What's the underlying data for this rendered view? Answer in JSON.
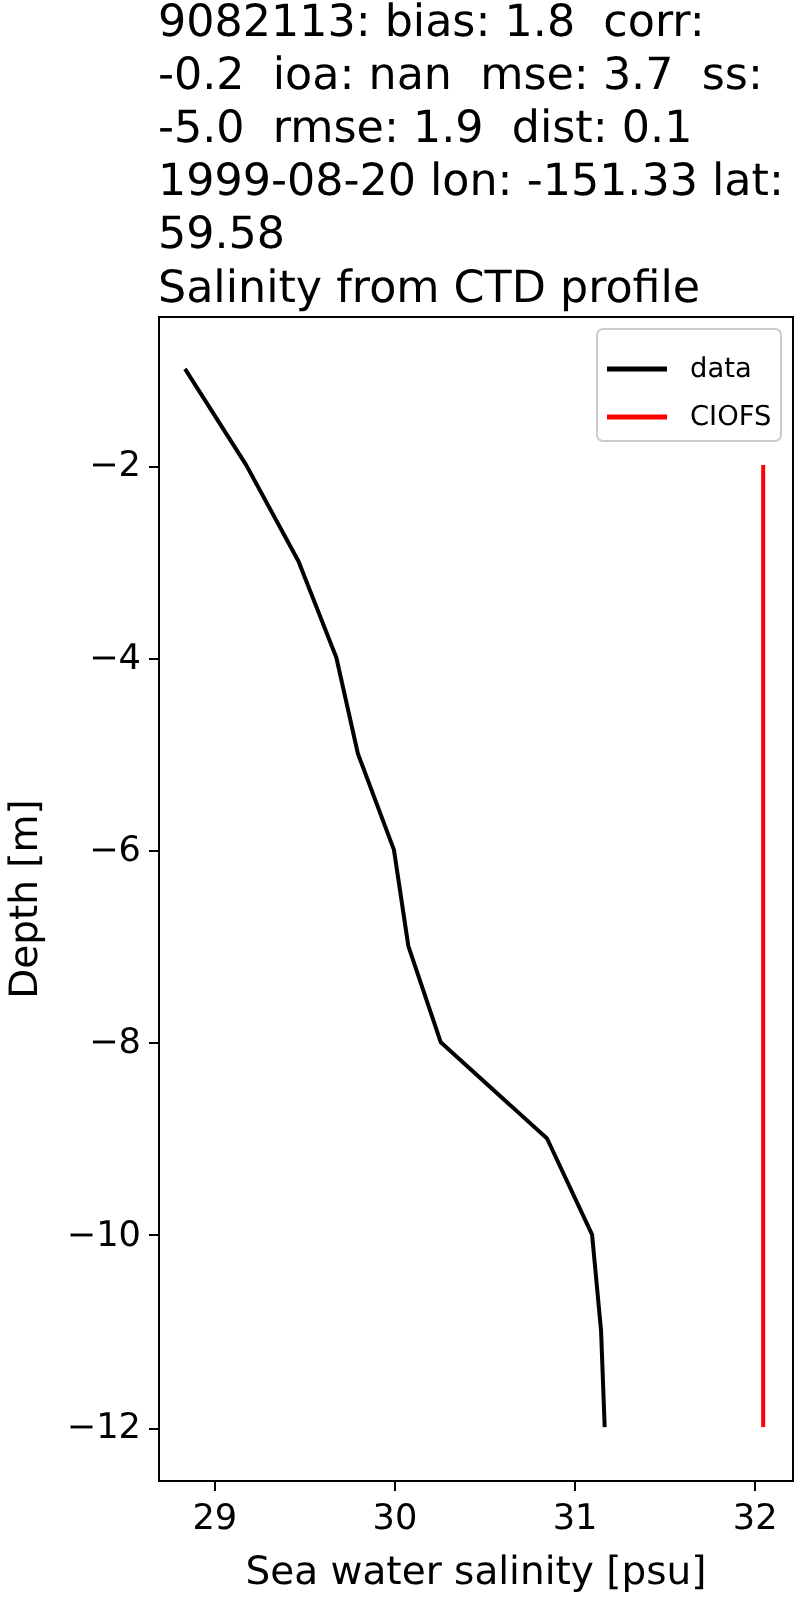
{
  "chart_data": {
    "type": "line",
    "title": "9082113: bias: 1.8  corr: -0.2  ioa: nan  mse: 3.7  ss: -5.0  rmse: 1.9  dist: 0.1\n1999-08-20 lon: -151.33 lat: 59.58\nSalinity from CTD profile",
    "xlabel": "Sea water salinity [psu]",
    "ylabel": "Depth [m]",
    "series": [
      {
        "name": "data",
        "color": "#000000",
        "x": [
          28.84,
          29.18,
          29.47,
          29.68,
          29.8,
          30.0,
          30.08,
          30.26,
          30.85,
          31.1,
          31.15,
          31.17
        ],
        "values": [
          -1,
          -2,
          -3,
          -4,
          -5,
          -6,
          -7,
          -8,
          -9,
          -10,
          -11,
          -12
        ]
      },
      {
        "name": "CIOFS",
        "color": "#ff0000",
        "x": [
          32.05,
          32.05,
          32.05,
          32.05,
          32.05,
          32.05,
          32.05,
          32.05,
          32.05,
          32.05,
          32.05
        ],
        "values": [
          -2,
          -3,
          -4,
          -5,
          -6,
          -7,
          -8,
          -9,
          -10,
          -11,
          -12
        ]
      }
    ],
    "xlim": [
      28.69,
      32.21
    ],
    "xticks": [
      29,
      30,
      31,
      32
    ],
    "ylim": [
      -12.55,
      -0.45
    ],
    "yticks": [
      -12,
      -10,
      -8,
      -6,
      -4,
      -2
    ],
    "legend": "top right",
    "grid": false,
    "marker": "none",
    "line_style": "solid"
  }
}
